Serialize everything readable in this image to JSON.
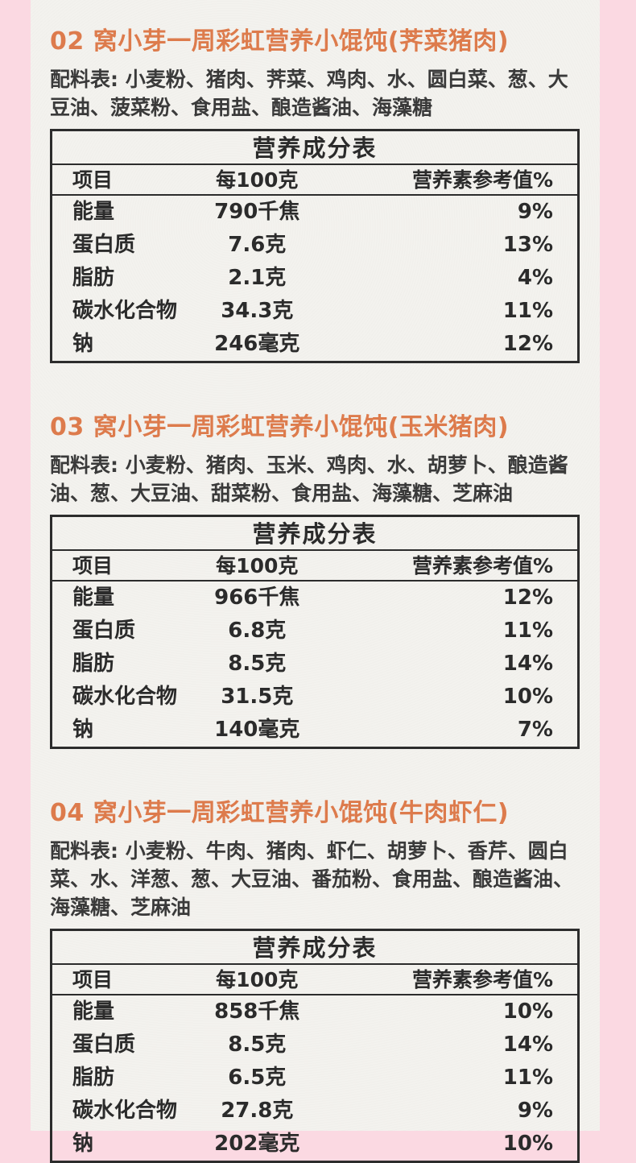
{
  "page": {
    "background_pink": "#fbd9e2",
    "paper_color": "#f3f2ee",
    "accent_orange": "#dd7b4c",
    "text_dark": "#3a3a3a"
  },
  "sections": [
    {
      "number": "02",
      "title": "02 窝小芽一周彩虹营养小馄饨(荠菜猪肉)",
      "ingredients": "配料表: 小麦粉、猪肉、荠菜、鸡肉、水、圆白菜、葱、大豆油、菠菜粉、食用盐、酿造酱油、海藻糖",
      "table": {
        "title": "营养成分表",
        "columns": [
          "项目",
          "每100克",
          "营养素参考值%"
        ],
        "rows": [
          [
            "能量",
            "790千焦",
            "9%"
          ],
          [
            "蛋白质",
            "7.6克",
            "13%"
          ],
          [
            "脂肪",
            "2.1克",
            "4%"
          ],
          [
            "碳水化合物",
            "34.3克",
            "11%"
          ],
          [
            "钠",
            "246毫克",
            "12%"
          ]
        ]
      }
    },
    {
      "number": "03",
      "title": "03 窝小芽一周彩虹营养小馄饨(玉米猪肉)",
      "ingredients": "配料表: 小麦粉、猪肉、玉米、鸡肉、水、胡萝卜、酿造酱油、葱、大豆油、甜菜粉、食用盐、海藻糖、芝麻油",
      "table": {
        "title": "营养成分表",
        "columns": [
          "项目",
          "每100克",
          "营养素参考值%"
        ],
        "rows": [
          [
            "能量",
            "966千焦",
            "12%"
          ],
          [
            "蛋白质",
            "6.8克",
            "11%"
          ],
          [
            "脂肪",
            "8.5克",
            "14%"
          ],
          [
            "碳水化合物",
            "31.5克",
            "10%"
          ],
          [
            "钠",
            "140毫克",
            "7%"
          ]
        ]
      }
    },
    {
      "number": "04",
      "title": "04 窝小芽一周彩虹营养小馄饨(牛肉虾仁)",
      "ingredients": "配料表: 小麦粉、牛肉、猪肉、虾仁、胡萝卜、香芹、圆白菜、水、洋葱、葱、大豆油、番茄粉、食用盐、酿造酱油、海藻糖、芝麻油",
      "table": {
        "title": "营养成分表",
        "columns": [
          "项目",
          "每100克",
          "营养素参考值%"
        ],
        "rows": [
          [
            "能量",
            "858千焦",
            "10%"
          ],
          [
            "蛋白质",
            "8.5克",
            "14%"
          ],
          [
            "脂肪",
            "6.5克",
            "11%"
          ],
          [
            "碳水化合物",
            "27.8克",
            "9%"
          ],
          [
            "钠",
            "202毫克",
            "10%"
          ]
        ]
      }
    }
  ]
}
